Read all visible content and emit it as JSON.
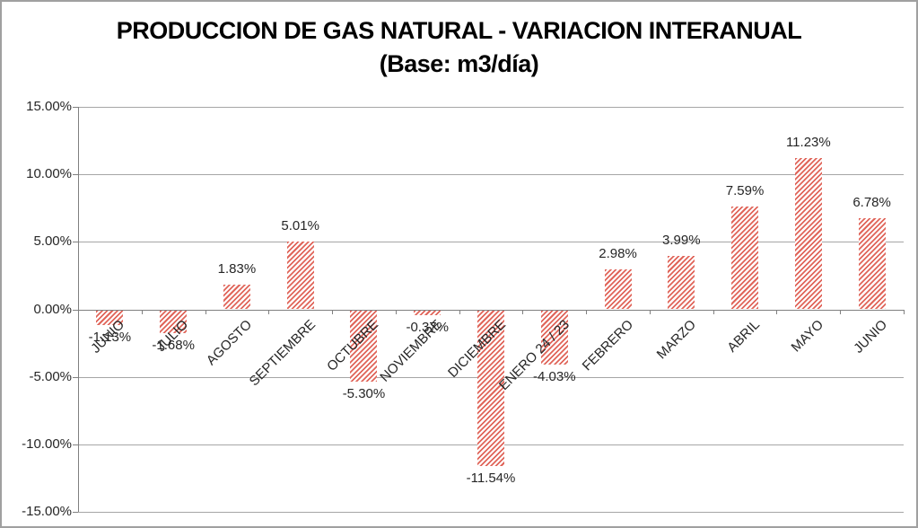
{
  "window": {
    "background": "#ffffff",
    "border_color": "#a0a0a0"
  },
  "title": {
    "line1": "PRODUCCION DE GAS NATURAL - VARIACION INTERANUAL",
    "line2": "(Base: m3/día)"
  },
  "chart_data": {
    "type": "bar",
    "title": "PRODUCCION DE GAS NATURAL - VARIACION INTERANUAL (Base: m3/día)",
    "categories": [
      "JUNIO",
      "JULIO",
      "AGOSTO",
      "SEPTIEMBRE",
      "OCTUBRE",
      "NOVIEMBRE",
      "DICIEMBRE",
      "ENERO 24 / 23",
      "FEBRERO",
      "MARZO",
      "ABRIL",
      "MAYO",
      "JUNIO"
    ],
    "values": [
      -1.13,
      -1.68,
      1.83,
      5.01,
      -5.3,
      -0.37,
      -11.54,
      -4.03,
      2.98,
      3.99,
      7.59,
      11.23,
      6.78
    ],
    "data_labels": [
      "-1.13%",
      "-1.68%",
      "1.83%",
      "5.01%",
      "-5.30%",
      "-0.37%",
      "-11.54%",
      "-4.03%",
      "2.98%",
      "3.99%",
      "7.59%",
      "11.23%",
      "6.78%"
    ],
    "y_tick_labels": [
      "15.00%",
      "10.00%",
      "5.00%",
      "0.00%",
      "-5.00%",
      "-10.00%",
      "-15.00%"
    ],
    "ylim": [
      -15,
      15
    ],
    "y_tick_step": 5,
    "xlabel": "",
    "ylabel": "",
    "grid": true,
    "legend": "none",
    "bar_pattern": "diagonal-up-hatch",
    "bar_color": "#e0655a",
    "bar_background": "#ffffff",
    "axis_color": "#808080",
    "gridline_color": "#a6a6a6",
    "label_color": "#262626"
  }
}
